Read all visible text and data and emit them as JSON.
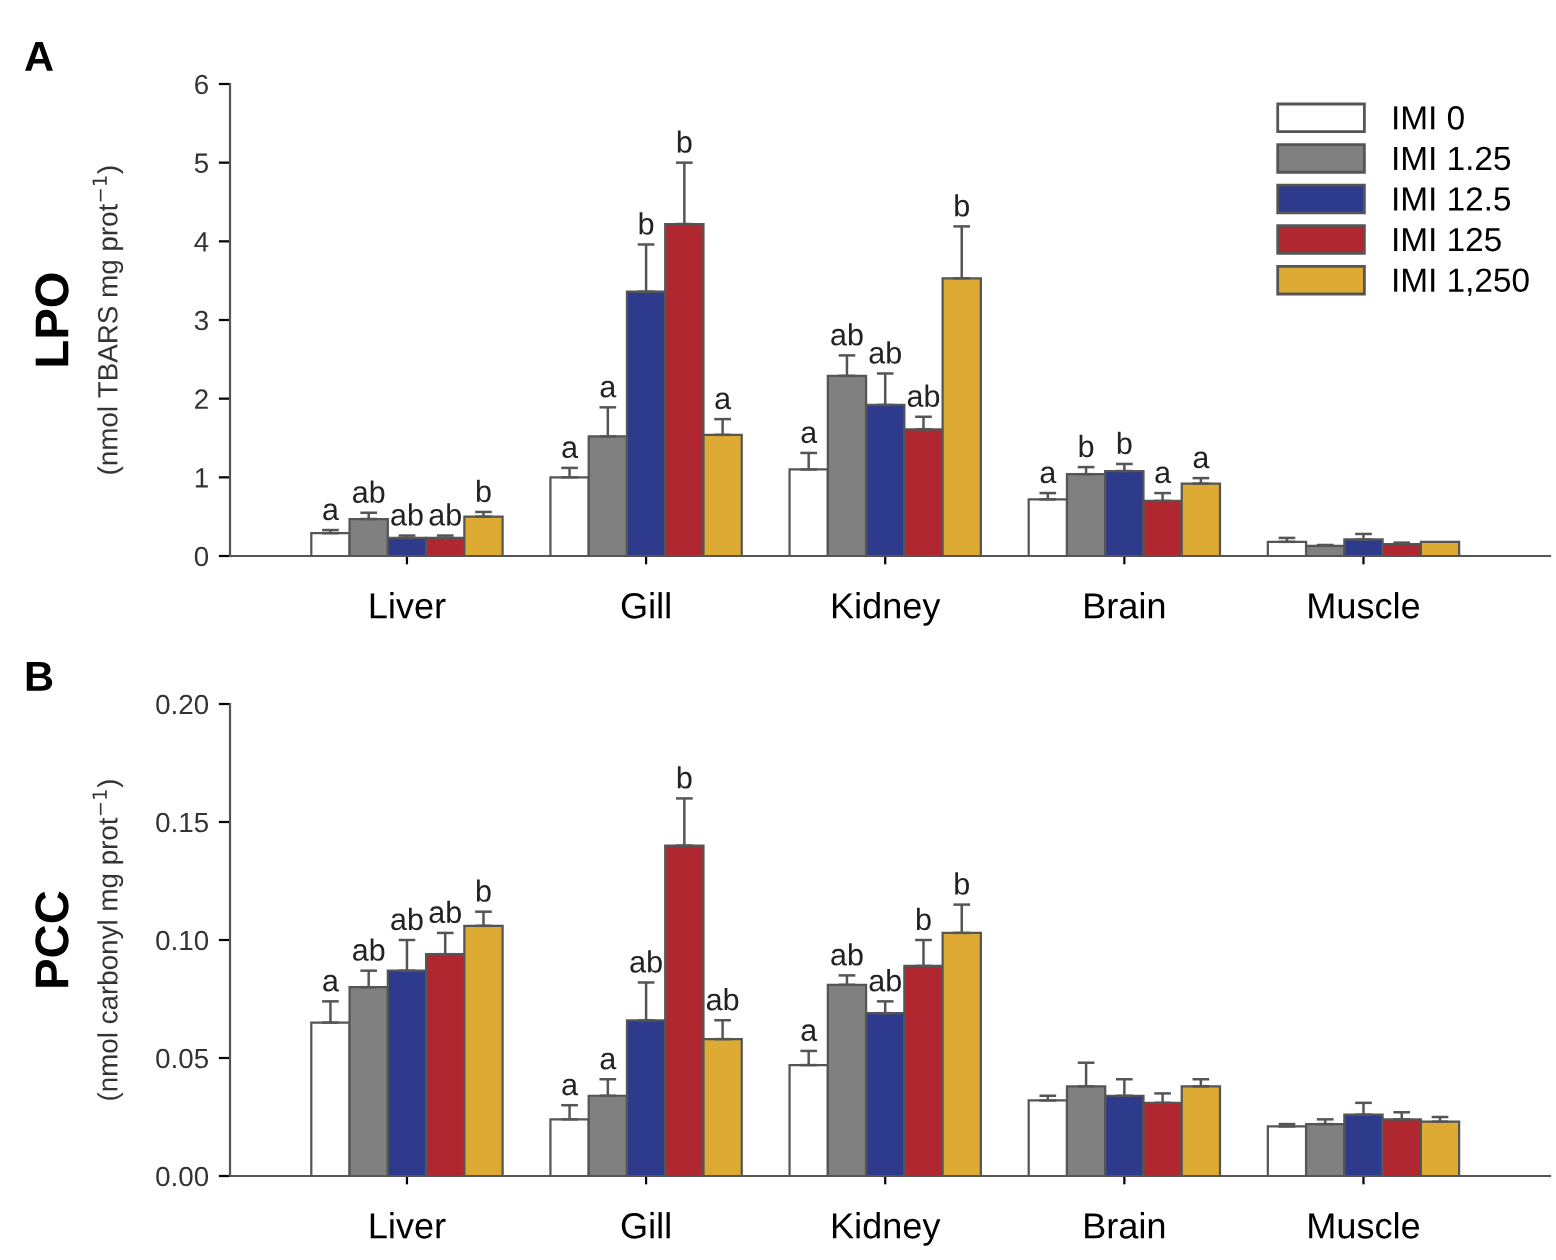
{
  "chart_data": [
    {
      "type": "bar",
      "title": "A",
      "ylabel": "LPO\n(nmol TBARS mg prot$^{−1}$)",
      "categories": [
        "Liver",
        "Gill",
        "Kidney",
        "Brain",
        "Muscle"
      ],
      "ylim": [
        0,
        6
      ],
      "yticks": [
        0,
        1,
        2,
        3,
        4,
        5,
        6
      ],
      "grid": false,
      "legend": "top right",
      "series": [
        {
          "name": "IMI 0",
          "color": "#ffffff",
          "values": [
            0.29,
            1.0,
            1.1,
            0.72,
            0.18
          ],
          "errors": [
            0.04,
            0.12,
            0.21,
            0.08,
            0.05
          ],
          "value_labels": [
            "a",
            "a",
            "a",
            "a",
            null
          ]
        },
        {
          "name": "IMI 1.25",
          "color": "#808080",
          "values": [
            0.47,
            1.52,
            2.29,
            1.04,
            0.13
          ],
          "errors": [
            0.08,
            0.37,
            0.26,
            0.09,
            0.01
          ],
          "value_labels": [
            "ab",
            "a",
            "ab",
            "b",
            null
          ]
        },
        {
          "name": "IMI 12.5",
          "color": "#2e3a8c",
          "values": [
            0.23,
            3.36,
            1.92,
            1.08,
            0.21
          ],
          "errors": [
            0.03,
            0.6,
            0.4,
            0.09,
            0.07
          ],
          "value_labels": [
            "ab",
            "b",
            "ab",
            "b",
            null
          ]
        },
        {
          "name": "IMI 125",
          "color": "#b0272f",
          "values": [
            0.23,
            4.22,
            1.61,
            0.7,
            0.15
          ],
          "errors": [
            0.03,
            0.78,
            0.16,
            0.1,
            0.02
          ],
          "value_labels": [
            "ab",
            "b",
            "ab",
            "a",
            null
          ]
        },
        {
          "name": "IMI 1,250",
          "color": "#ddaa33",
          "values": [
            0.5,
            1.54,
            3.53,
            0.92,
            0.18
          ],
          "errors": [
            0.06,
            0.2,
            0.66,
            0.07,
            null
          ],
          "value_labels": [
            "b",
            "a",
            "b",
            "a",
            null
          ]
        }
      ]
    },
    {
      "type": "bar",
      "title": "B",
      "ylabel": "PCC\n(nmol carbonyl mg prot$^{−1}$)",
      "categories": [
        "Liver",
        "Gill",
        "Kidney",
        "Brain",
        "Muscle"
      ],
      "ylim": [
        0,
        0.2
      ],
      "yticks": [
        {
          "value": 0,
          "label": "0.00"
        },
        {
          "value": 0.05,
          "label": "0.05"
        },
        {
          "value": 0.1,
          "label": "0.10"
        },
        {
          "value": 0.15,
          "label": "0.15"
        },
        {
          "value": 0.2,
          "label": "0.20"
        }
      ],
      "grid": false,
      "series": [
        {
          "color": "#ffffff",
          "values": [
            0.065,
            0.024,
            0.047,
            0.032,
            0.021
          ],
          "errors": [
            0.009,
            0.006,
            0.006,
            0.002,
            0.001
          ],
          "value_labels": [
            "a",
            "a",
            "a",
            null,
            null
          ]
        },
        {
          "color": "#808080",
          "values": [
            0.08,
            0.034,
            0.081,
            0.038,
            0.022
          ],
          "errors": [
            0.007,
            0.007,
            0.004,
            0.01,
            0.002
          ],
          "value_labels": [
            "ab",
            "a",
            "ab",
            null,
            null
          ]
        },
        {
          "color": "#2e3a8c",
          "values": [
            0.087,
            0.066,
            0.069,
            0.034,
            0.026
          ],
          "errors": [
            0.013,
            0.016,
            0.005,
            0.007,
            0.005
          ],
          "value_labels": [
            "ab",
            "ab",
            "ab",
            null,
            null
          ]
        },
        {
          "color": "#b0272f",
          "values": [
            0.094,
            0.14,
            0.089,
            0.031,
            0.024
          ],
          "errors": [
            0.009,
            0.02,
            0.011,
            0.004,
            0.003
          ],
          "value_labels": [
            "ab",
            "b",
            "b",
            null,
            null
          ]
        },
        {
          "color": "#ddaa33",
          "values": [
            0.106,
            0.058,
            0.103,
            0.038,
            0.023
          ],
          "errors": [
            0.006,
            0.008,
            0.012,
            0.003,
            0.002
          ],
          "value_labels": [
            "b",
            "ab",
            "b",
            null,
            null
          ]
        }
      ]
    }
  ]
}
